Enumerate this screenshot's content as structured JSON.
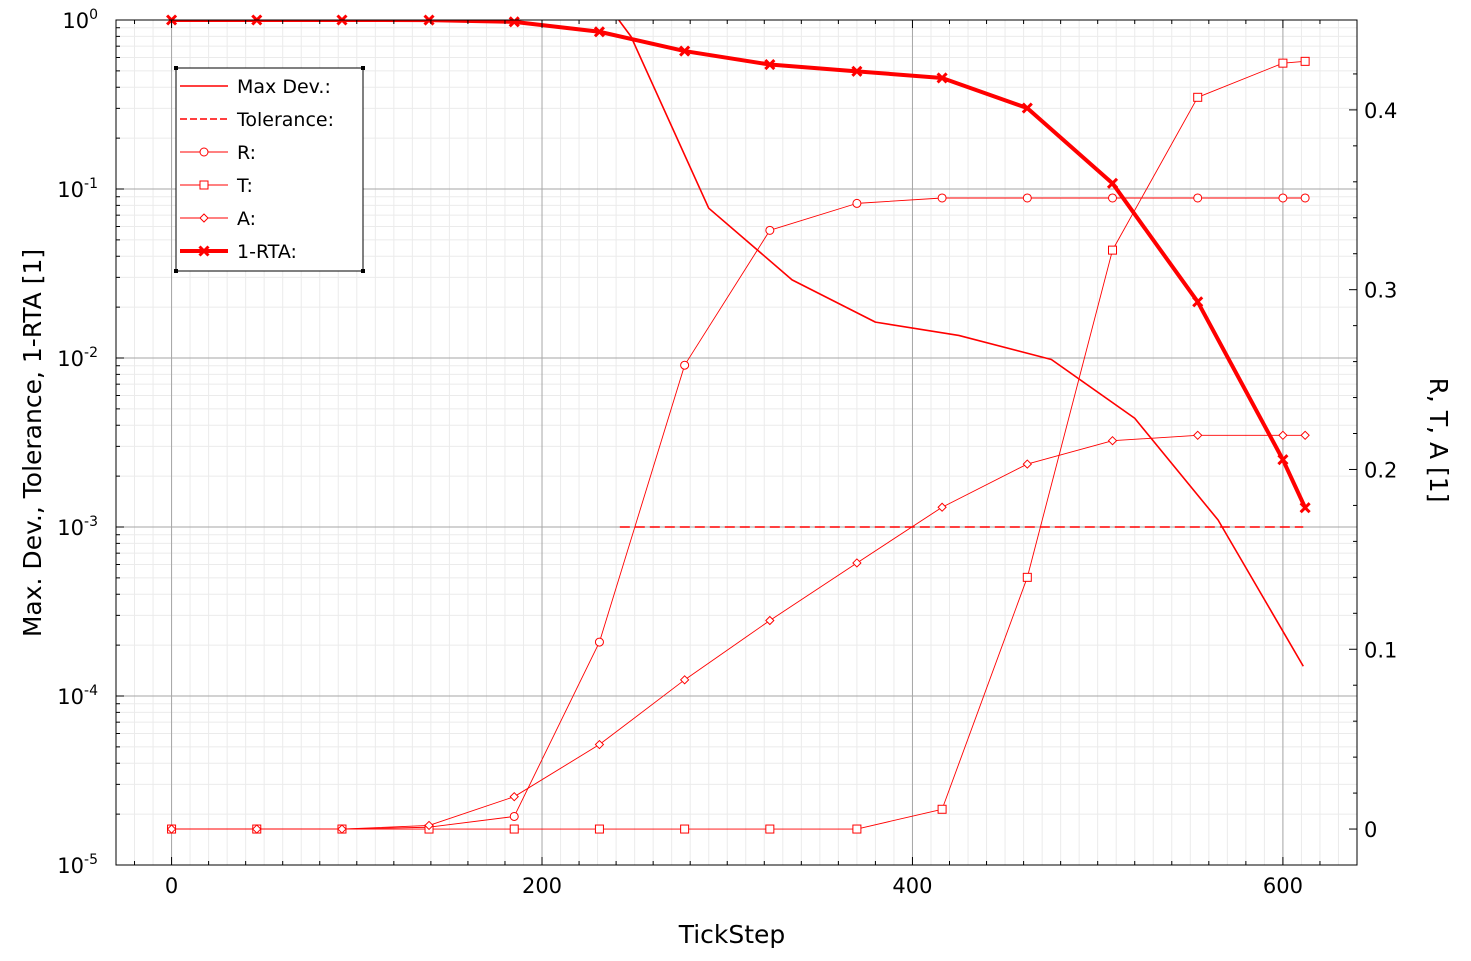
{
  "chart_data": {
    "type": "line",
    "xlabel": "TickStep",
    "ylabel": "Max. Dev., Tolerance, 1-RTA [1]",
    "y2label": "R, T, A [1]",
    "xlim": [
      -30,
      640
    ],
    "ylim_log": [
      1e-05,
      1
    ],
    "y2lim": [
      -0.02,
      0.45
    ],
    "x_ticks": [
      0,
      200,
      400,
      600
    ],
    "y_ticks_log": [
      {
        "value": 1,
        "base": "10",
        "exp": "0"
      },
      {
        "value": 0.1,
        "base": "10",
        "exp": "-1"
      },
      {
        "value": 0.01,
        "base": "10",
        "exp": "-2"
      },
      {
        "value": 0.001,
        "base": "10",
        "exp": "-3"
      },
      {
        "value": 0.0001,
        "base": "10",
        "exp": "-4"
      },
      {
        "value": 1e-05,
        "base": "10",
        "exp": "-5"
      }
    ],
    "y2_ticks": [
      {
        "value": 0,
        "label": "0"
      },
      {
        "value": 0.1,
        "label": "0.1"
      },
      {
        "value": 0.2,
        "label": "0.2"
      },
      {
        "value": 0.3,
        "label": "0.3"
      },
      {
        "value": 0.4,
        "label": "0.4"
      }
    ],
    "grid": true,
    "legend_position": "top-left",
    "color": "#ff0000",
    "series": [
      {
        "name": "Max Dev.:",
        "axis": "left",
        "style": "solid",
        "marker": "none",
        "width": 1.6,
        "x": [
          240,
          248,
          290,
          335,
          380,
          425,
          475,
          520,
          565,
          611
        ],
        "y": [
          1.05,
          0.8,
          0.077,
          0.029,
          0.0163,
          0.0136,
          0.0098,
          0.0044,
          0.0011,
          0.00015
        ]
      },
      {
        "name": "Tolerance:",
        "axis": "left",
        "style": "dashed",
        "marker": "none",
        "width": 1.6,
        "x": [
          242,
          611
        ],
        "y": [
          0.001,
          0.001
        ]
      },
      {
        "name": "R:",
        "axis": "right",
        "style": "solid",
        "marker": "circle",
        "width": 0.9,
        "x": [
          0,
          46,
          92,
          139,
          185,
          231,
          277,
          323,
          370,
          416,
          462,
          508,
          554,
          600,
          612
        ],
        "y": [
          0,
          0,
          0,
          0.001,
          0.007,
          0.104,
          0.258,
          0.333,
          0.348,
          0.351,
          0.351,
          0.351,
          0.351,
          0.351,
          0.351
        ]
      },
      {
        "name": "T:",
        "axis": "right",
        "style": "solid",
        "marker": "square",
        "width": 0.9,
        "x": [
          0,
          46,
          92,
          139,
          185,
          231,
          277,
          323,
          370,
          416,
          462,
          508,
          554,
          600,
          612
        ],
        "y": [
          0,
          0,
          0,
          0,
          0,
          0,
          0,
          0,
          0,
          0.011,
          0.14,
          0.322,
          0.407,
          0.426,
          0.427
        ]
      },
      {
        "name": "A:",
        "axis": "right",
        "style": "solid",
        "marker": "diamond",
        "width": 0.9,
        "x": [
          0,
          46,
          92,
          139,
          185,
          231,
          277,
          323,
          370,
          416,
          462,
          508,
          554,
          600,
          612
        ],
        "y": [
          0,
          0,
          0,
          0.002,
          0.018,
          0.047,
          0.083,
          0.116,
          0.148,
          0.179,
          0.203,
          0.216,
          0.219,
          0.219,
          0.219
        ]
      },
      {
        "name": "1-RTA:",
        "axis": "left",
        "style": "solid",
        "marker": "x",
        "width": 4,
        "x": [
          0,
          46,
          92,
          139,
          185,
          231,
          277,
          323,
          370,
          416,
          462,
          508,
          554,
          600,
          612
        ],
        "y": [
          1,
          1,
          1,
          0.999,
          0.975,
          0.852,
          0.655,
          0.545,
          0.497,
          0.454,
          0.301,
          0.108,
          0.0215,
          0.0025,
          0.0013
        ]
      }
    ]
  }
}
